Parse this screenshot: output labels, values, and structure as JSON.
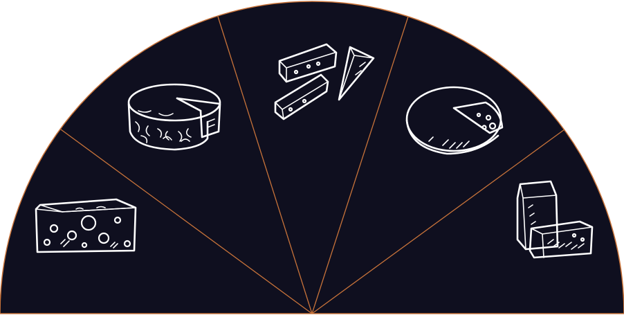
{
  "wheel": {
    "background_color": "#0f0f1f",
    "divider_color": "#c8733a",
    "sectors": [
      {
        "id": "sector-1",
        "icon": "swiss-cheese-wedge-icon"
      },
      {
        "id": "sector-2",
        "icon": "camembert-wheel-icon"
      },
      {
        "id": "sector-3",
        "icon": "cheese-sticks-icon"
      },
      {
        "id": "sector-4",
        "icon": "gouda-wheel-icon"
      },
      {
        "id": "sector-5",
        "icon": "parmesan-blocks-icon"
      }
    ]
  }
}
